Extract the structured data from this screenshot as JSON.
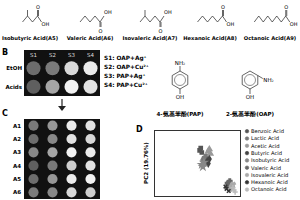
{
  "panel_a": {
    "compounds": [
      "Isobutyric Acid(A5)",
      "Valeric Acid(A6)",
      "Isovaleric Acid(A7)",
      "Hexanoic Acid(A8)",
      "Octanoic Acid(A9)"
    ],
    "carbonyl": "O",
    "hydroxyl": "OH"
  },
  "panel_b": {
    "letter": "B",
    "rows": [
      "EtOH",
      "Acids"
    ],
    "columns": [
      "S1",
      "S2",
      "S3",
      "S4"
    ],
    "intensity": [
      [
        0.35,
        0.4,
        0.75,
        0.85
      ],
      [
        0.3,
        0.55,
        0.9,
        0.8
      ]
    ],
    "key": [
      "S1: OAP+Ag⁺",
      "S2: OAP+Cu²⁺",
      "S3: PAP+Ag⁺",
      "S4: PAP+Cu²⁺"
    ],
    "structures": [
      {
        "name": "4-氨基苯酚(PAP)",
        "amine": "NH₂",
        "hydroxyl": "OH"
      },
      {
        "name": "2-氨基苯酚(OAP)",
        "amine": "NH₂",
        "hydroxyl": "OH"
      }
    ]
  },
  "panel_c": {
    "letter": "C",
    "rows": [
      "A1",
      "A2",
      "A3",
      "A4",
      "A5",
      "A6"
    ],
    "intensity": [
      [
        0.4,
        0.5,
        0.85,
        0.8
      ],
      [
        0.35,
        0.45,
        0.8,
        0.75
      ],
      [
        0.45,
        0.55,
        0.9,
        0.85
      ],
      [
        0.3,
        0.4,
        0.7,
        0.8
      ],
      [
        0.35,
        0.5,
        0.85,
        0.9
      ],
      [
        0.4,
        0.45,
        0.75,
        0.7
      ]
    ]
  },
  "panel_d": {
    "letter": "D"
  },
  "chart_data": {
    "type": "scatter",
    "ylabel": "PC2 (19.76%)",
    "xlim": [
      -4,
      4
    ],
    "ylim": [
      -3,
      3
    ],
    "tick_labels": false,
    "legend": "right",
    "series": [
      {
        "name": "Benzoic Acid",
        "color": "#555555",
        "marker": "square",
        "values": [
          [
            0.2,
            1.2
          ],
          [
            0.4,
            1.0
          ],
          [
            0.3,
            1.4
          ]
        ]
      },
      {
        "name": "Lactic Acid",
        "color": "#777777",
        "marker": "circle",
        "values": [
          [
            0.6,
            0.5
          ],
          [
            0.8,
            0.7
          ],
          [
            0.5,
            0.3
          ]
        ]
      },
      {
        "name": "Acetic Acid",
        "color": "#999999",
        "marker": "triangle",
        "values": [
          [
            1.0,
            1.1
          ],
          [
            1.2,
            0.9
          ],
          [
            1.1,
            1.3
          ]
        ]
      },
      {
        "name": "Butyric Acid",
        "color": "#444444",
        "marker": "diamond",
        "values": [
          [
            0.9,
            0.2
          ],
          [
            1.1,
            0.4
          ],
          [
            1.0,
            0.0
          ]
        ]
      },
      {
        "name": "Isobutyric Acid",
        "color": "#888888",
        "marker": "star",
        "values": [
          [
            0.4,
            -0.1
          ],
          [
            0.6,
            0.1
          ],
          [
            0.5,
            -0.3
          ]
        ]
      },
      {
        "name": "Valeric Acid",
        "color": "#666666",
        "marker": "cross",
        "values": [
          [
            2.8,
            -1.8
          ],
          [
            3.0,
            -1.6
          ],
          [
            2.9,
            -2.0
          ]
        ]
      },
      {
        "name": "Isovaleric Acid",
        "color": "#aaaaaa",
        "marker": "wye",
        "values": [
          [
            3.2,
            -2.1
          ],
          [
            3.3,
            -1.9
          ],
          [
            3.1,
            -2.3
          ]
        ]
      },
      {
        "name": "Hexanoic Acid",
        "color": "#333333",
        "marker": "times",
        "values": [
          [
            2.7,
            -2.3
          ],
          [
            2.9,
            -2.5
          ],
          [
            2.6,
            -2.1
          ]
        ]
      },
      {
        "name": "Octanoic Acid",
        "color": "#bbbbbb",
        "marker": "plus",
        "values": [
          [
            3.4,
            -2.4
          ],
          [
            3.5,
            -2.6
          ],
          [
            3.3,
            -2.2
          ]
        ]
      }
    ]
  }
}
